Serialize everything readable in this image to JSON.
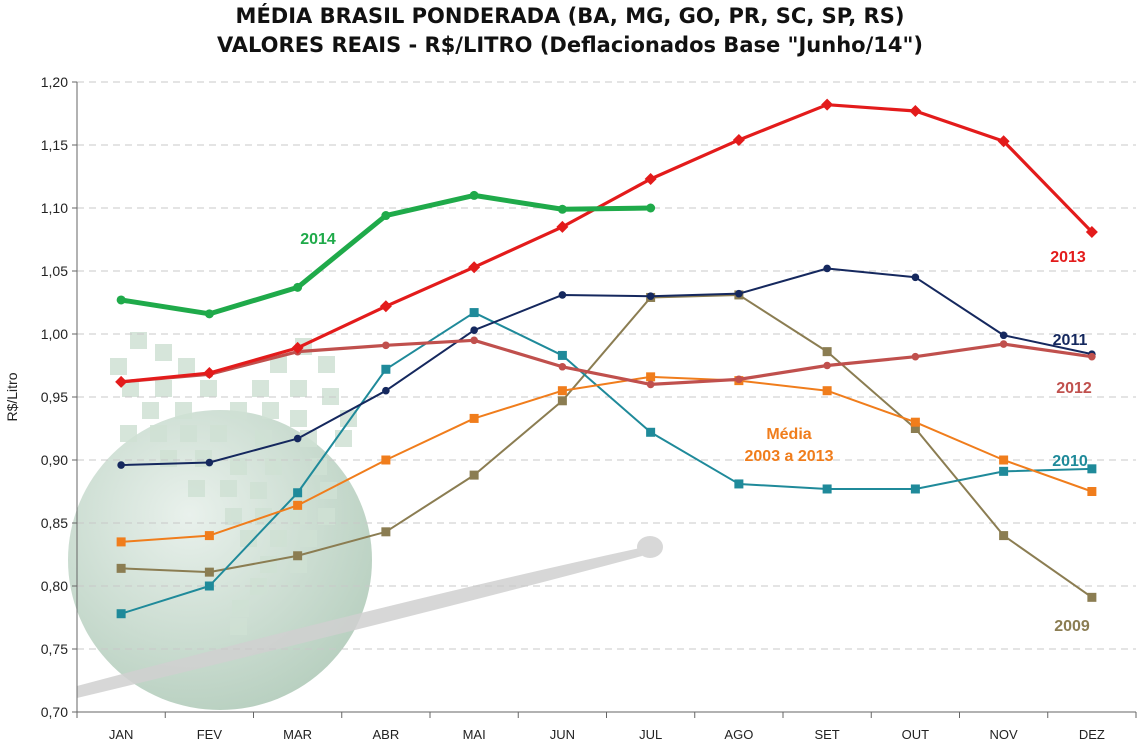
{
  "chart_data": {
    "type": "line",
    "title": "MÉDIA BRASIL PONDERADA (BA, MG, GO, PR, SC, SP, RS)",
    "subtitle": "VALORES REAIS - R$/LITRO (Deflacionados Base \"Junho/14\")",
    "xlabel": "",
    "ylabel": "R$/Litro",
    "ylim": [
      0.7,
      1.2
    ],
    "yticks": [
      "0,70",
      "0,75",
      "0,80",
      "0,85",
      "0,90",
      "0,95",
      "1,00",
      "1,05",
      "1,10",
      "1,15",
      "1,20"
    ],
    "categories": [
      "JAN",
      "FEV",
      "MAR",
      "ABR",
      "MAI",
      "JUN",
      "JUL",
      "AGO",
      "SET",
      "OUT",
      "NOV",
      "DEZ"
    ],
    "grid": true,
    "series": [
      {
        "name": "2009",
        "color": "#8b7d52",
        "marker": "square",
        "values": [
          0.814,
          0.811,
          0.824,
          0.843,
          0.888,
          0.947,
          1.029,
          1.031,
          0.986,
          0.925,
          0.84,
          0.791
        ]
      },
      {
        "name": "2010",
        "color": "#1f8a9a",
        "marker": "square",
        "values": [
          0.778,
          0.8,
          0.874,
          0.972,
          1.017,
          0.983,
          0.922,
          0.881,
          0.877,
          0.877,
          0.891,
          0.893
        ]
      },
      {
        "name": "Média 2003 a 2013",
        "color": "#f07d1c",
        "marker": "square",
        "values": [
          0.835,
          0.84,
          0.864,
          0.9,
          0.933,
          0.955,
          0.966,
          0.963,
          0.955,
          0.93,
          0.9,
          0.875
        ]
      },
      {
        "name": "2011",
        "color": "#15285e",
        "marker": "circle",
        "values": [
          0.896,
          0.898,
          0.917,
          0.955,
          1.003,
          1.031,
          1.03,
          1.032,
          1.052,
          1.045,
          0.999,
          0.984
        ]
      },
      {
        "name": "2012",
        "color": "#c0504d",
        "marker": "circle",
        "values": [
          0.962,
          0.968,
          0.986,
          0.991,
          0.995,
          0.974,
          0.96,
          0.964,
          0.975,
          0.982,
          0.992,
          0.982
        ]
      },
      {
        "name": "2013",
        "color": "#e31b1b",
        "marker": "diamond",
        "values": [
          0.962,
          0.969,
          0.989,
          1.022,
          1.053,
          1.085,
          1.123,
          1.154,
          1.182,
          1.177,
          1.153,
          1.081
        ]
      },
      {
        "name": "2014",
        "color": "#1faa4a",
        "marker": "circle",
        "values": [
          1.027,
          1.016,
          1.037,
          1.094,
          1.11,
          1.099,
          1.1,
          null,
          null,
          null,
          null,
          null
        ]
      }
    ],
    "annotations": [
      {
        "text": "2014",
        "color": "#1faa4a"
      },
      {
        "text": "2013",
        "color": "#e31b1b"
      },
      {
        "text": "2011",
        "color": "#15285e"
      },
      {
        "text": "2012",
        "color": "#c0504d"
      },
      {
        "text": "Média",
        "color": "#f07d1c"
      },
      {
        "text": "2003 a 2013",
        "color": "#f07d1c"
      },
      {
        "text": "2010",
        "color": "#1f8a9a"
      },
      {
        "text": "2009",
        "color": "#8b7d52"
      }
    ]
  }
}
